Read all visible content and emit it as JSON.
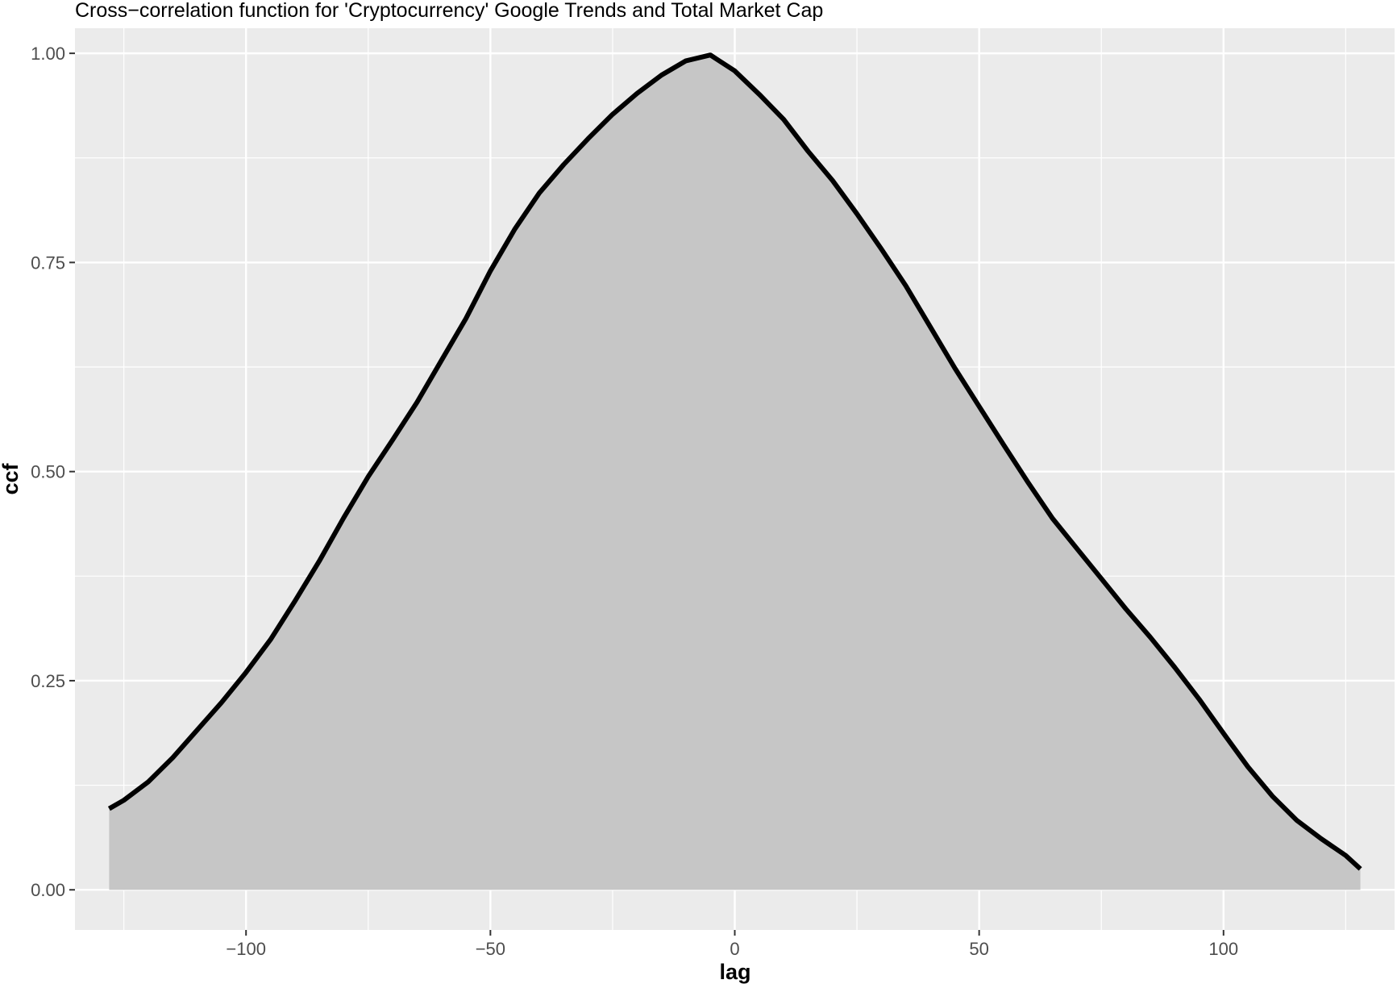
{
  "chart_data": {
    "type": "area",
    "title": "Cross−correlation function for 'Cryptocurrency' Google Trends and Total Market Cap",
    "xlabel": "lag",
    "ylabel": "ccf",
    "xlim": [
      -135,
      135
    ],
    "ylim": [
      -0.048,
      1.03
    ],
    "x_ticks": [
      -100,
      -50,
      0,
      50,
      100
    ],
    "x_tick_labels": [
      "−100",
      "−50",
      "0",
      "50",
      "100"
    ],
    "x_minor_ticks": [
      -125,
      -75,
      -25,
      25,
      75,
      125
    ],
    "y_ticks": [
      0,
      0.25,
      0.5,
      0.75,
      1
    ],
    "y_tick_labels": [
      "0.00",
      "0.25",
      "0.50",
      "0.75",
      "1.00"
    ],
    "y_minor_ticks": [
      0.125,
      0.375,
      0.625,
      0.875
    ],
    "grid": true,
    "legend": "none",
    "colors": {
      "panel": "#ebebeb",
      "grid": "#ffffff",
      "area": "#c6c6c6",
      "line": "#000000"
    },
    "series": [
      {
        "x": [
          -128,
          -125,
          -120,
          -115,
          -110,
          -105,
          -100,
          -95,
          -90,
          -85,
          -80,
          -75,
          -70,
          -65,
          -60,
          -55,
          -50,
          -45,
          -40,
          -35,
          -30,
          -25,
          -20,
          -15,
          -10,
          -5,
          0,
          5,
          10,
          15,
          20,
          25,
          30,
          35,
          40,
          45,
          50,
          55,
          60,
          65,
          70,
          75,
          80,
          85,
          90,
          95,
          100,
          105,
          110,
          115,
          120,
          125,
          128
        ],
        "y": [
          0.097,
          0.107,
          0.129,
          0.158,
          0.191,
          0.224,
          0.26,
          0.299,
          0.345,
          0.393,
          0.445,
          0.494,
          0.538,
          0.583,
          0.633,
          0.683,
          0.74,
          0.79,
          0.833,
          0.867,
          0.898,
          0.927,
          0.952,
          0.974,
          0.991,
          0.998,
          0.979,
          0.951,
          0.921,
          0.883,
          0.848,
          0.808,
          0.766,
          0.722,
          0.673,
          0.624,
          0.578,
          0.532,
          0.487,
          0.444,
          0.408,
          0.372,
          0.336,
          0.302,
          0.266,
          0.228,
          0.187,
          0.147,
          0.112,
          0.083,
          0.061,
          0.041,
          0.025
        ]
      }
    ]
  }
}
